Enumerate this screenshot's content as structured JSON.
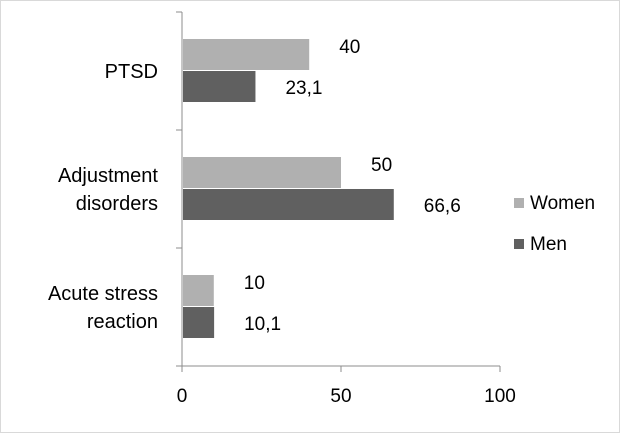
{
  "chart_data": {
    "type": "bar",
    "orientation": "horizontal",
    "categories": [
      "PTSD",
      "Adjustment disorders",
      "Acute stress reaction"
    ],
    "category_label_lines": [
      [
        "PTSD"
      ],
      [
        "Adjustment",
        "disorders"
      ],
      [
        "Acute stress",
        "reaction"
      ]
    ],
    "series": [
      {
        "name": "Women",
        "values": [
          40,
          50,
          10
        ],
        "labels": [
          "40",
          "50",
          "10"
        ],
        "color": "#b0b0b0"
      },
      {
        "name": "Men",
        "values": [
          23.1,
          66.6,
          10.1
        ],
        "labels": [
          "23,1",
          "66,6",
          "10,1"
        ],
        "color": "#606060"
      }
    ],
    "xlim": [
      0,
      100
    ],
    "xticks": [
      0,
      50,
      100
    ],
    "xtick_labels": [
      "0",
      "50",
      "100"
    ],
    "grid": false,
    "legend_position": "right",
    "title": "",
    "xlabel": "",
    "ylabel": ""
  }
}
